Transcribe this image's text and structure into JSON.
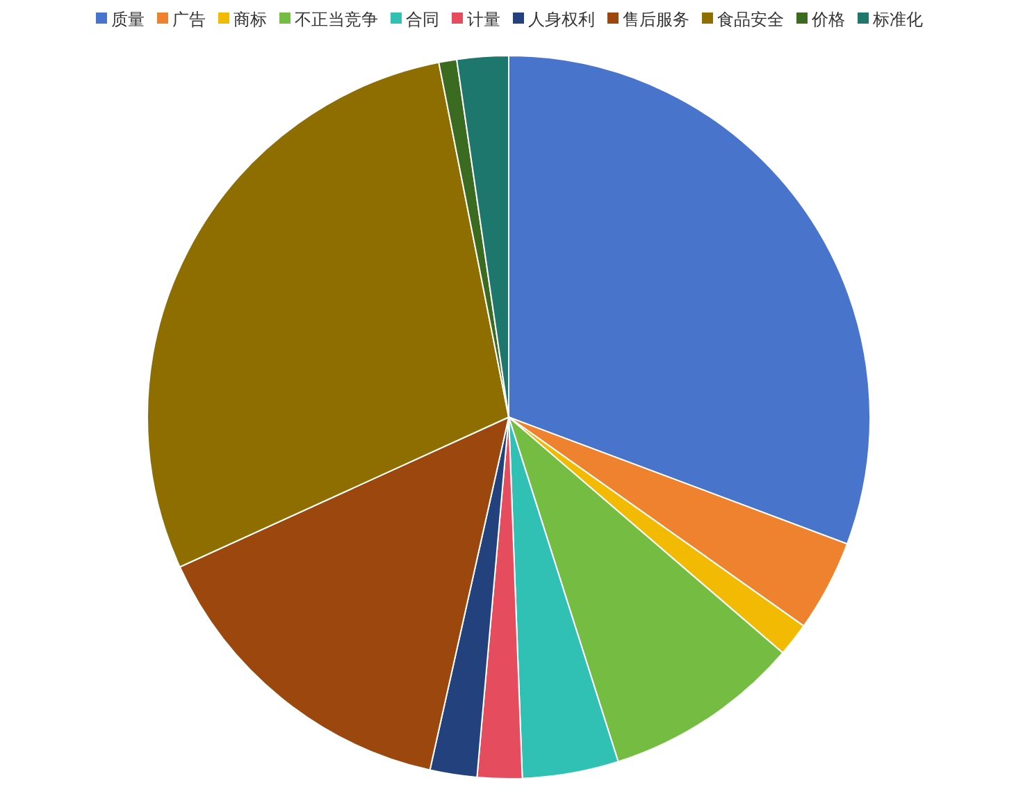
{
  "chart_data": {
    "type": "pie",
    "categories": [
      "质量",
      "广告",
      "商标",
      "不正当竞争",
      "合同",
      "计量",
      "人身权利",
      "售后服务",
      "食品安全",
      "价格",
      "标准化"
    ],
    "values": [
      30.7,
      4.1,
      1.5,
      8.8,
      4.3,
      2.0,
      2.1,
      14.7,
      28.7,
      0.8,
      2.3
    ],
    "colors": [
      "#4874cb",
      "#ee822f",
      "#f2ba02",
      "#75bd42",
      "#30c0b4",
      "#e54c5e",
      "#23417c",
      "#9b470d",
      "#8f6e00",
      "#3b6a21",
      "#1e776d"
    ],
    "legend": "top"
  }
}
